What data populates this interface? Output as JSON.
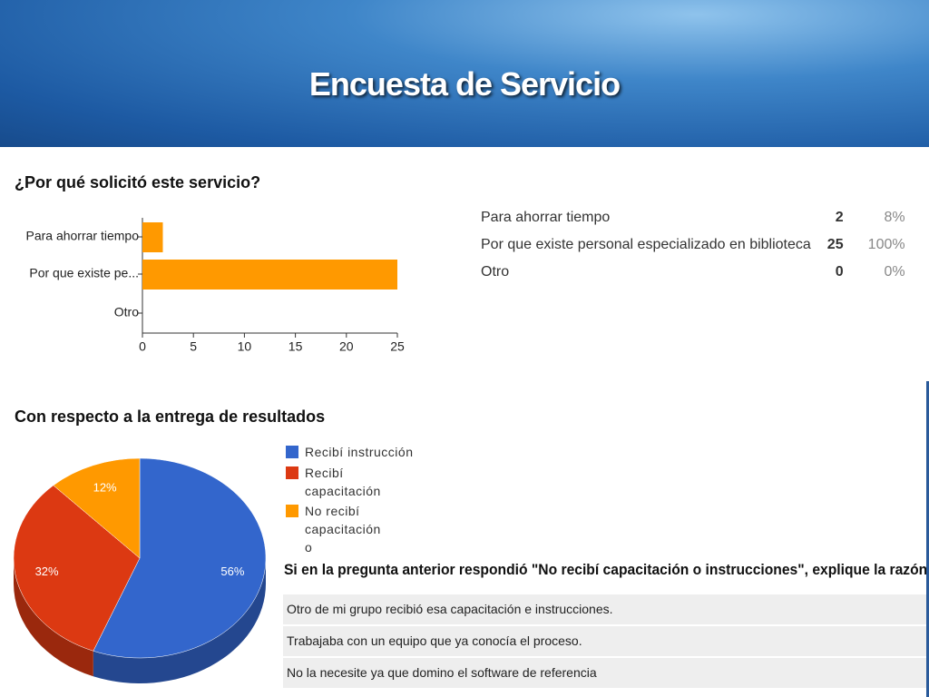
{
  "header": {
    "title": "Encuesta de Servicio"
  },
  "chart_data": [
    {
      "type": "hbar",
      "title": "¿Por qué solicitó este servicio?",
      "categories": [
        "Para ahorrar tiempo",
        "Por que existe pe...",
        "Otro"
      ],
      "values": [
        2,
        25,
        0
      ],
      "color": "#ff9900",
      "xlim": [
        0,
        25
      ],
      "xticks": [
        0,
        5,
        10,
        15,
        20,
        25
      ]
    },
    {
      "type": "pie",
      "title": "Con respecto a la entrega de resultados",
      "categories": [
        "Recibí instrucción",
        "Recibí capacitación",
        "No recibí capacitación o"
      ],
      "values": [
        56,
        32,
        12
      ],
      "value_labels": [
        "56%",
        "32%",
        "12%"
      ],
      "colors": [
        "#3366cc",
        "#dc3912",
        "#ff9900"
      ]
    }
  ],
  "summary_table": {
    "rows": [
      [
        "Para ahorrar tiempo",
        "2",
        "8%"
      ],
      [
        "Por que existe personal especializado en biblioteca",
        "25",
        "100%"
      ],
      [
        "Otro",
        "0",
        "0%"
      ]
    ]
  },
  "responses": {
    "question": "Si en la pregunta anterior respondió \"No recibí capacitación o instrucciones\", explique la razón",
    "rows": [
      "Otro de mi grupo recibió esa capacitación e instrucciones.",
      "Trabajaba con un equipo que ya conocía el proceso.",
      "No la necesite ya que domino el software de referencia"
    ]
  }
}
